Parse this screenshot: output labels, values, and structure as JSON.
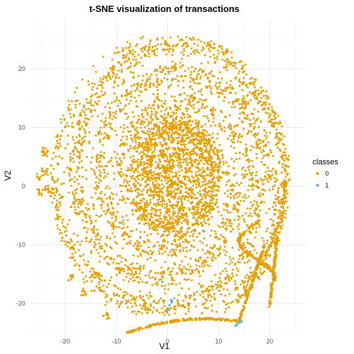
{
  "chart_data": {
    "type": "scatter",
    "title": "t-SNE visualization of transactions",
    "xlabel": "V1",
    "ylabel": "V2",
    "xlim": [
      -27,
      27
    ],
    "ylim": [
      -25.5,
      28.5
    ],
    "x_ticks": [
      -20,
      -10,
      0,
      10,
      20
    ],
    "y_ticks": [
      -20,
      -10,
      0,
      10,
      20
    ],
    "x_tick_labels": [
      "-20",
      "-10",
      "0",
      "10",
      "20"
    ],
    "y_tick_labels": [
      "-20",
      "-10",
      "0",
      "10",
      "20"
    ],
    "grid": true,
    "legend": {
      "title": "classes",
      "position": "right",
      "entries": [
        {
          "label": "0",
          "color": "#E69F00"
        },
        {
          "label": "1",
          "color": "#56B4E9"
        }
      ]
    },
    "series": [
      {
        "name": "0",
        "color": "#E69F00",
        "description_shape": "dense ring-shaped cloud of points",
        "x": [
          0.5,
          3.0,
          -2.5,
          5.0,
          -5.0,
          1.0,
          -1.0,
          7.0,
          -7.0,
          10.0,
          -10.0,
          12.0,
          -12.0,
          15.0,
          -15.0,
          0.0,
          4.0,
          -4.0,
          8.0,
          -8.0
        ],
        "y": [
          0.5,
          5.0,
          -5.0,
          10.0,
          10.0,
          -10.0,
          15.0,
          -3.0,
          3.0,
          8.0,
          -8.0,
          15.0,
          -12.0,
          -15.0,
          12.0,
          20.0,
          -18.0,
          18.0,
          -16.0,
          -14.0
        ]
      },
      {
        "name": "1",
        "color": "#56B4E9",
        "x": [
          7.0,
          -1.0,
          0.7,
          0.8,
          0.1,
          -0.1,
          0.9,
          14.0,
          14.3,
          14.5,
          13.6,
          13.3,
          0.4
        ],
        "y": [
          -7.6,
          -16.3,
          -19.4,
          -19.8,
          -21.0,
          -21.2,
          -19.6,
          -23.3,
          -23.2,
          -23.0,
          -23.6,
          -23.8,
          -20.3
        ]
      }
    ]
  }
}
